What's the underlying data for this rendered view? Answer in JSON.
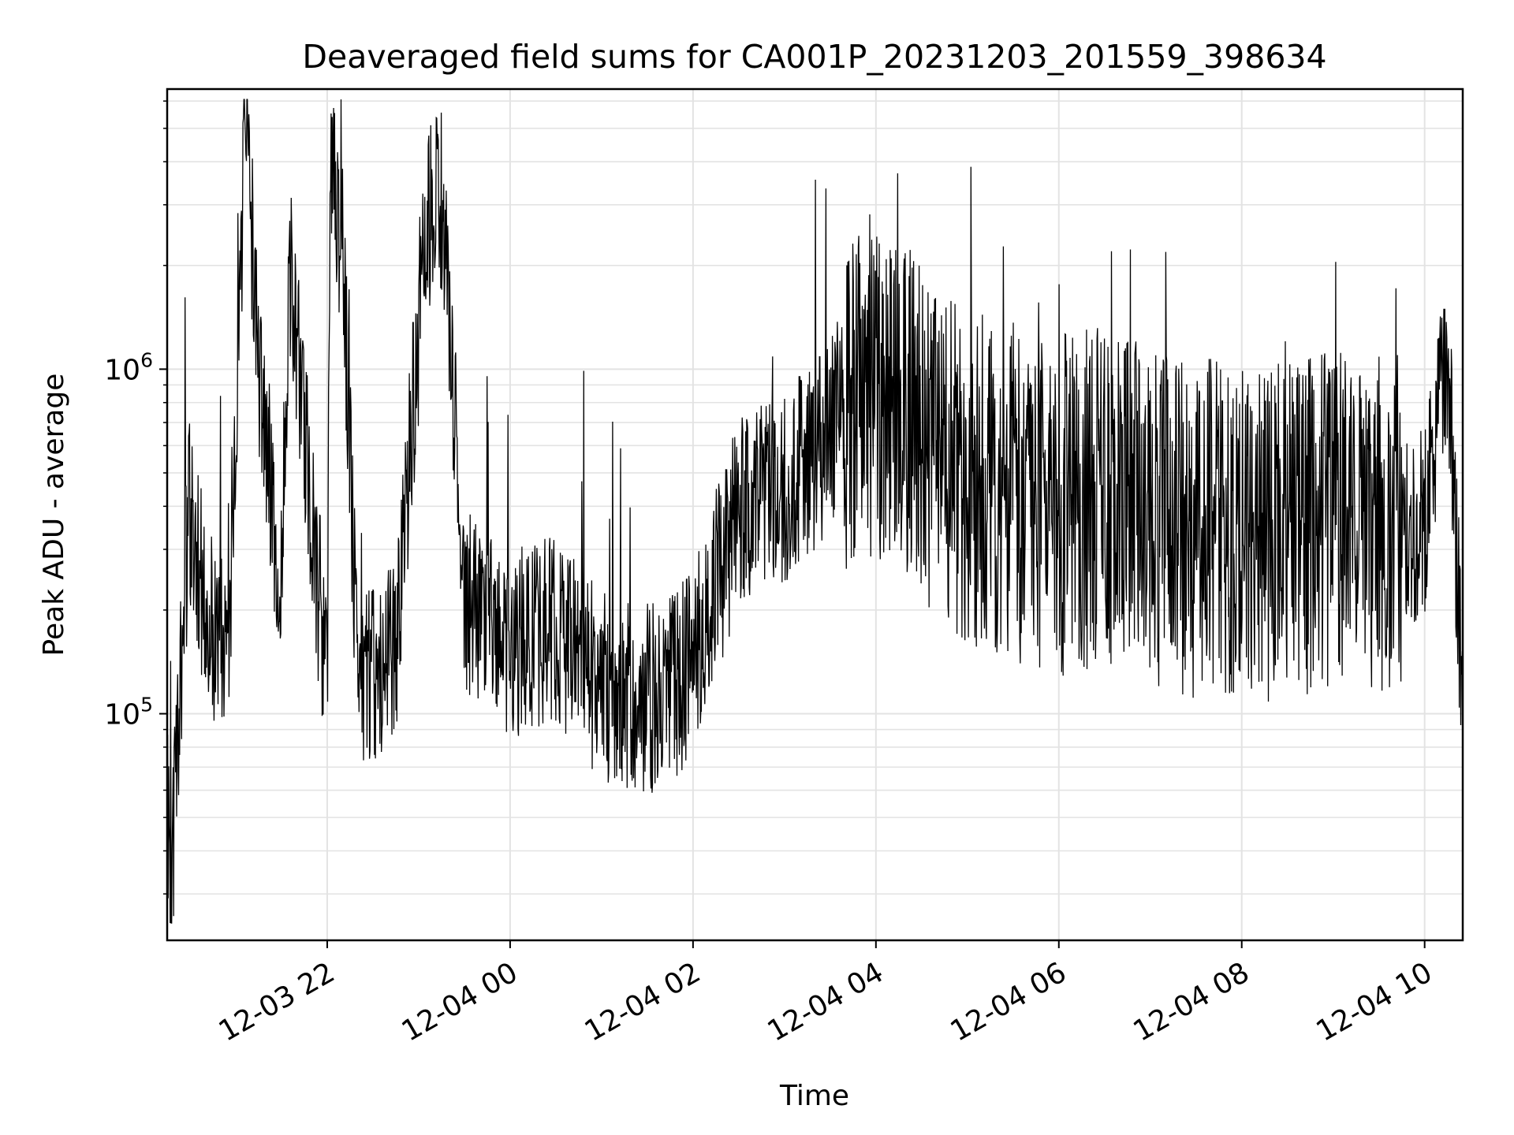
{
  "chart_data": {
    "type": "line",
    "title": "Deaveraged field sums for CA001P_20231203_201559_398634",
    "xlabel": "Time",
    "ylabel": "Peak ADU - average",
    "y_scale": "log",
    "ylim": [
      22000,
      6500000
    ],
    "xlim": [
      "2023-12-03 20:15",
      "2023-12-04 10:25"
    ],
    "grid": true,
    "x_ticks": [
      "12-03 22",
      "12-04 00",
      "12-04 02",
      "12-04 04",
      "12-04 06",
      "12-04 08",
      "12-04 10"
    ],
    "y_ticks": [
      {
        "base": "10",
        "exp": "5",
        "value": 100000
      },
      {
        "base": "10",
        "exp": "6",
        "value": 1000000
      }
    ],
    "series": [
      {
        "color": "#000000",
        "x": [
          "2023-12-03 20:15",
          "2023-12-03 20:18",
          "2023-12-03 20:23",
          "2023-12-03 20:30",
          "2023-12-03 20:40",
          "2023-12-03 20:55",
          "2023-12-03 21:05",
          "2023-12-03 21:08",
          "2023-12-03 21:12",
          "2023-12-03 21:30",
          "2023-12-03 21:35",
          "2023-12-03 22:00",
          "2023-12-03 22:02",
          "2023-12-03 22:10",
          "2023-12-03 22:20",
          "2023-12-03 22:45",
          "2023-12-03 23:05",
          "2023-12-03 23:15",
          "2023-12-03 23:30",
          "2023-12-03 23:55",
          "2023-12-04 00:30",
          "2023-12-04 01:00",
          "2023-12-04 01:30",
          "2023-12-04 01:55",
          "2023-12-04 02:30",
          "2023-12-04 03:00",
          "2023-12-04 03:25",
          "2023-12-04 03:45",
          "2023-12-04 04:00",
          "2023-12-04 04:30",
          "2023-12-04 05:00",
          "2023-12-04 05:30",
          "2023-12-04 06:00",
          "2023-12-04 06:30",
          "2023-12-04 07:00",
          "2023-12-04 07:30",
          "2023-12-04 08:00",
          "2023-12-04 08:30",
          "2023-12-04 09:00",
          "2023-12-04 09:30",
          "2023-12-04 10:00",
          "2023-12-04 10:15",
          "2023-12-04 10:25"
        ],
        "y": [
          60000,
          30000,
          120000,
          400000,
          200000,
          150000,
          3000000,
          6000000,
          1500000,
          220000,
          2000000,
          120000,
          3500000,
          2400000,
          120000,
          150000,
          2800000,
          3000000,
          220000,
          150000,
          180000,
          120000,
          110000,
          130000,
          380000,
          450000,
          600000,
          900000,
          900000,
          650000,
          500000,
          450000,
          400000,
          420000,
          380000,
          350000,
          330000,
          350000,
          360000,
          350000,
          350000,
          1200000,
          110000
        ]
      }
    ]
  }
}
